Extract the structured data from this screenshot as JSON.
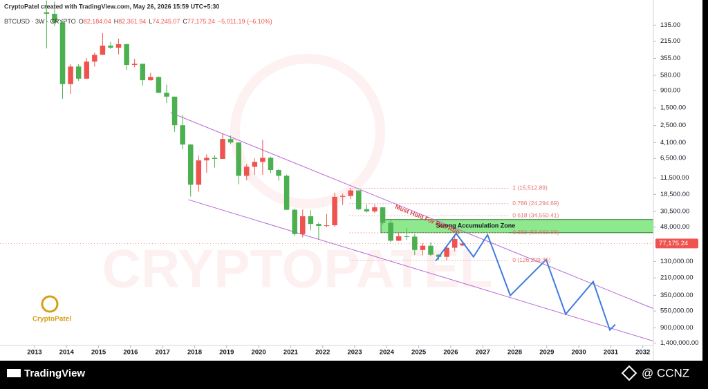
{
  "header": {
    "credit": "CryptoPatel created with TradingView.com, May 26, 2026 15:59 UTC+5:30",
    "symbol": "BTCUSD · 3W · CRYPTO",
    "ohlc": [
      {
        "key": "O",
        "label": "82,184.04"
      },
      {
        "key": "H",
        "label": "82,361.94"
      },
      {
        "key": "L",
        "label": "74,245.07"
      },
      {
        "key": "C",
        "label": "77,175.24"
      }
    ],
    "change": "−5,011.19 (−6.10%)"
  },
  "logo": "CryptoPatel",
  "watermark": "CRYPTOPATEL",
  "footer": {
    "brand": "TradingView",
    "handle": "@ CCNZ"
  },
  "chart_data": {
    "type": "candlestick",
    "log": true,
    "inverted": true,
    "up_color": "#4caf50",
    "down_color": "#ef5350",
    "x": [
      2013.375,
      2013.625,
      2013.875,
      2014.125,
      2014.375,
      2014.625,
      2014.875,
      2015.125,
      2015.375,
      2015.625,
      2015.875,
      2016.125,
      2016.375,
      2016.625,
      2016.875,
      2017.125,
      2017.375,
      2017.625,
      2017.875,
      2018.125,
      2018.375,
      2018.625,
      2018.875,
      2019.125,
      2019.375,
      2019.625,
      2019.875,
      2020.125,
      2020.375,
      2020.625,
      2020.875,
      2021.125,
      2021.375,
      2021.625,
      2021.875,
      2022.125,
      2022.375,
      2022.625,
      2022.875,
      2023.125,
      2023.375,
      2023.625,
      2023.875,
      2024.125,
      2024.375,
      2024.625,
      2024.875,
      2025.125,
      2025.375,
      2025.625,
      2025.875,
      2026.125,
      2026.375
    ],
    "open": [
      93,
      97,
      125,
      750,
      450,
      640,
      390,
      320,
      245,
      260,
      235,
      430,
      415,
      670,
      610,
      965,
      1080,
      2480,
      4350,
      14000,
      6900,
      6400,
      6600,
      3700,
      4100,
      10800,
      8300,
      7200,
      6400,
      9130,
      10800,
      29000,
      58800,
      35000,
      43800,
      46300,
      45500,
      19900,
      19400,
      16500,
      28500,
      30400,
      27000,
      42300,
      71300,
      62700,
      63300,
      93400,
      82500,
      107200,
      114000,
      87500,
      82184.04
    ],
    "high": [
      266,
      140,
      1150,
      1000,
      680,
      650,
      450,
      320,
      270,
      315,
      500,
      460,
      780,
      680,
      980,
      1300,
      3000,
      5000,
      19700,
      17200,
      9900,
      8500,
      6600,
      4300,
      13800,
      12300,
      10500,
      10500,
      10000,
      12400,
      29300,
      61800,
      64800,
      52900,
      69000,
      48200,
      47400,
      25200,
      21400,
      29200,
      31400,
      31800,
      44700,
      73800,
      72000,
      70000,
      108000,
      109000,
      111900,
      124000,
      126200,
      97000,
      82361.94
    ],
    "low": [
      66,
      68,
      120,
      420,
      420,
      350,
      300,
      170,
      220,
      200,
      230,
      360,
      415,
      540,
      600,
      760,
      1080,
      1830,
      4300,
      6000,
      5800,
      5900,
      3150,
      3350,
      4100,
      7700,
      6500,
      3800,
      6200,
      8900,
      10400,
      28000,
      28800,
      29300,
      42000,
      32900,
      17600,
      18200,
      15500,
      16500,
      24800,
      24900,
      26900,
      38500,
      56500,
      49000,
      58900,
      76600,
      74500,
      105000,
      80500,
      60000,
      74245.07
    ],
    "close": [
      97,
      125,
      750,
      450,
      640,
      390,
      320,
      245,
      260,
      235,
      430,
      415,
      670,
      610,
      965,
      1080,
      2480,
      4350,
      14000,
      6900,
      6400,
      6600,
      3700,
      4100,
      10800,
      8300,
      7200,
      6400,
      9130,
      10800,
      29000,
      58800,
      35000,
      43800,
      46300,
      45500,
      19900,
      19400,
      16500,
      28500,
      30400,
      27000,
      42300,
      71300,
      62700,
      63300,
      93400,
      82500,
      107200,
      114000,
      87500,
      68000,
      77175.24
    ],
    "xlim": [
      2011.92,
      2032.33
    ],
    "xticks": [
      2013,
      2014,
      2015,
      2016,
      2017,
      2018,
      2019,
      2020,
      2021,
      2022,
      2023,
      2024,
      2025,
      2026,
      2027,
      2028,
      2029,
      2030,
      2031,
      2032
    ],
    "ylim": [
      65,
      1500000
    ],
    "yticks": [
      {
        "value": 135,
        "label": "135.00"
      },
      {
        "value": 215,
        "label": "215.00"
      },
      {
        "value": 355,
        "label": "355.00"
      },
      {
        "value": 580,
        "label": "580.00"
      },
      {
        "value": 900,
        "label": "900.00"
      },
      {
        "value": 1500,
        "label": "1,500.00"
      },
      {
        "value": 2500,
        "label": "2,500.00"
      },
      {
        "value": 4100,
        "label": "4,100.00"
      },
      {
        "value": 6500,
        "label": "6,500.00"
      },
      {
        "value": 11500,
        "label": "11,500.00"
      },
      {
        "value": 18500,
        "label": "18,500.00"
      },
      {
        "value": 30500,
        "label": "30,500.00"
      },
      {
        "value": 48000,
        "label": "48,000.00"
      },
      {
        "value": 130000,
        "label": "130,000.00"
      },
      {
        "value": 210000,
        "label": "210,000.00"
      },
      {
        "value": 350000,
        "label": "350,000.00"
      },
      {
        "value": 550000,
        "label": "550,000.00"
      },
      {
        "value": 900000,
        "label": "900,000.00"
      },
      {
        "value": 1400000,
        "label": "1,400,000.00"
      }
    ],
    "last_price": {
      "value": 77175.24,
      "label": "77,175.24"
    },
    "channel": {
      "color": "#b667d8",
      "lines": [
        {
          "x": [
            2017.25,
            2032.33
          ],
          "values": [
            1720,
            513000
          ]
        },
        {
          "x": [
            2017.8,
            2032.33
          ],
          "values": [
            21600,
            1320000
          ]
        }
      ]
    },
    "fib_x": [
      2022.83,
      2027.8
    ],
    "fib_levels": [
      {
        "value": 15512.89,
        "label": "1 (15,512.89)"
      },
      {
        "value": 24294.69,
        "label": "0.786 (24,294.69)"
      },
      {
        "value": 34550.41,
        "label": "0.618 (34,550.41)"
      },
      {
        "value": 56663.06,
        "label": "0.382 (56,663.06)"
      },
      {
        "value": 126209.35,
        "label": "0 (126,209.35)"
      }
    ],
    "zone": {
      "label": "Strong Accumulation Zone",
      "color": "#8ee88e",
      "x": [
        2023.82,
        2032.33
      ],
      "values": [
        38500,
        56500
      ]
    },
    "projection": {
      "color": "#3d7be0",
      "x": [
        2025.53,
        2026.17,
        2026.71,
        2027.15,
        2027.86,
        2028.98,
        2029.59,
        2030.45,
        2030.97,
        2031.14
      ],
      "values": [
        128500,
        57700,
        114000,
        60000,
        350600,
        123600,
        602600,
        234400,
        955000,
        813000
      ]
    },
    "annotation": "Must Hold For Bull Run"
  }
}
